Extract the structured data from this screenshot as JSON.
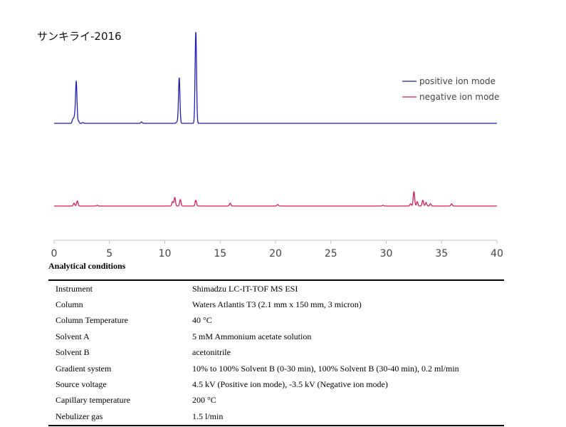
{
  "chart_data": {
    "type": "line",
    "title": "サンキライ-2016",
    "xlim": [
      0,
      40
    ],
    "x_ticks": [
      "0",
      "5",
      "10",
      "15",
      "20",
      "25",
      "30",
      "35",
      "40"
    ],
    "legend": {
      "placement": "top-right",
      "entries": [
        "positive ion mode",
        "negative ion mode"
      ]
    },
    "grid": false,
    "series": [
      {
        "name": "positive ion mode",
        "color": "#1f1fb4",
        "baseline": 0,
        "peaks": [
          {
            "x": 1.7,
            "y": 6
          },
          {
            "x": 1.85,
            "y": 9
          },
          {
            "x": 2.0,
            "y": 58
          },
          {
            "x": 2.2,
            "y": 3
          },
          {
            "x": 2.6,
            "y": 1
          },
          {
            "x": 7.9,
            "y": 2
          },
          {
            "x": 11.1,
            "y": 2
          },
          {
            "x": 11.3,
            "y": 64
          },
          {
            "x": 12.8,
            "y": 128
          }
        ]
      },
      {
        "name": "negative ion mode",
        "color": "#d81b60",
        "baseline": 0,
        "peaks": [
          {
            "x": 1.8,
            "y": 4
          },
          {
            "x": 2.1,
            "y": 7
          },
          {
            "x": 3.9,
            "y": 1
          },
          {
            "x": 10.7,
            "y": 6
          },
          {
            "x": 10.9,
            "y": 12
          },
          {
            "x": 11.4,
            "y": 9
          },
          {
            "x": 12.8,
            "y": 8
          },
          {
            "x": 15.9,
            "y": 4
          },
          {
            "x": 20.2,
            "y": 2
          },
          {
            "x": 29.7,
            "y": 1
          },
          {
            "x": 32.2,
            "y": 3
          },
          {
            "x": 32.5,
            "y": 20
          },
          {
            "x": 32.8,
            "y": 6
          },
          {
            "x": 33.3,
            "y": 8
          },
          {
            "x": 33.6,
            "y": 5
          },
          {
            "x": 34.0,
            "y": 3
          },
          {
            "x": 35.9,
            "y": 3
          }
        ]
      }
    ]
  },
  "conditions": {
    "heading": "Analytical conditions",
    "rows": [
      {
        "label": "Instrument",
        "value": "Shimadzu LC-IT-TOF MS ESI"
      },
      {
        "label": "Column",
        "value": "Waters Atlantis T3 (2.1 mm x 150 mm, 3 micron)"
      },
      {
        "label": "Column Temperature",
        "value": "40 °C"
      },
      {
        "label": "Solvent A",
        "value": "5 mM Ammonium acetate solution"
      },
      {
        "label": "Solvent B",
        "value": "acetonitrile"
      },
      {
        "label": "Gradient system",
        "value": "10% to 100% Solvent B (0-30 min), 100% Solvent B (30-40 min), 0.2 ml/min"
      },
      {
        "label": "Source voltage",
        "value": "4.5 kV (Positive ion mode), -3.5 kV (Negative ion mode)"
      },
      {
        "label": "Capillary temperature",
        "value": "200 °C"
      },
      {
        "label": "Nebulizer gas",
        "value": "1.5 l/min"
      }
    ]
  }
}
